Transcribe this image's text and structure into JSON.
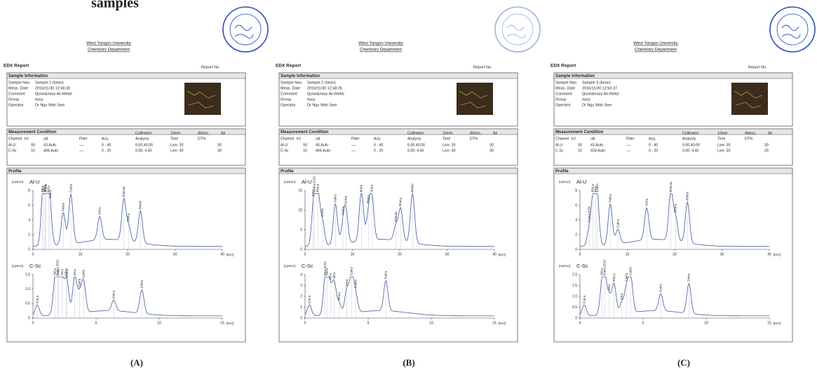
{
  "heading_fragment": "samples",
  "panels": [
    {
      "label": "(A)",
      "university": "West Yangon University",
      "department": "Chemistry Department",
      "report_title": "EDX Report",
      "report_no": "Report No.",
      "sample_info": {
        "title": "Sample Information",
        "rows": [
          [
            "Sample Nan",
            "Sample 1 (bean)"
          ],
          [
            "Meas. Date",
            "2016/11/30 12:46:30"
          ],
          [
            "Comment",
            "Quick&easy Air-Metal"
          ],
          [
            "Group",
            "easy"
          ],
          [
            "Operator",
            "Dr Ngu Wah Swe"
          ]
        ]
      },
      "measurement": {
        "title": "Measurement Condition",
        "extra": [
          "Collimator",
          "10mm",
          "Atmos.",
          "Air"
        ],
        "header": [
          "Channel",
          "kV",
          "uA",
          "Filter",
          "Acq.",
          "Analysis",
          "Time",
          "DT%"
        ],
        "rows": [
          [
            "Al-U",
            "50",
            "43-Auto",
            "----",
            "0 - 40",
            "0.00-40.00",
            "Live- 30",
            "30"
          ],
          [
            "C-Sc",
            "15",
            "466-Auto",
            "----",
            "0 - 20",
            "0.00- 4.40",
            "Live- 30",
            "30"
          ]
        ]
      },
      "profile": {
        "title": "Profile",
        "spectra": [
          {
            "unit": "[cps/uA]",
            "name": "Al-U",
            "yticks": [
              "0",
              "2",
              "4",
              "6",
              "8"
            ],
            "xticks": [
              "0",
              "10",
              "20",
              "30",
              "40"
            ],
            "xunit": "[keV]",
            "peaks": [
              {
                "label": "PKa",
                "keV": 2.0
              },
              {
                "label": "SKa",
                "keV": 2.3
              },
              {
                "label": "ClKa",
                "keV": 2.6
              },
              {
                "label": "RhLa",
                "keV": 2.7
              },
              {
                "label": "KKa",
                "keV": 3.3
              },
              {
                "label": "CaKa",
                "keV": 3.7
              },
              {
                "label": "FeKa",
                "keV": 6.4
              },
              {
                "label": "CuKa",
                "keV": 8.0
              },
              {
                "label": "SrKa",
                "keV": 14.1
              },
              {
                "label": "RhKaC",
                "keV": 19.2
              },
              {
                "label": "RhKa",
                "keV": 20.2
              },
              {
                "label": "RhKb",
                "keV": 22.7
              }
            ]
          },
          {
            "unit": "[cps/uA]",
            "name": "C-Sc",
            "yticks": [
              "0",
              "0.5",
              "1.0",
              "1.5"
            ],
            "xticks": [
              "0",
              "5",
              "10",
              "15"
            ],
            "xunit": "[keV]",
            "peaks": [
              {
                "label": "CaLa",
                "keV": 0.34
              },
              {
                "label": "SiKa",
                "keV": 1.74
              },
              {
                "label": "CaKa ESC",
                "keV": 1.95
              },
              {
                "label": "PKa",
                "keV": 2.01
              },
              {
                "label": "SKa",
                "keV": 2.31
              },
              {
                "label": "ClKa",
                "keV": 2.62
              },
              {
                "label": "RhLa",
                "keV": 2.7
              },
              {
                "label": "KKa",
                "keV": 3.31
              },
              {
                "label": "CaKa",
                "keV": 3.69
              },
              {
                "label": "CaKb",
                "keV": 4.01
              },
              {
                "label": "FeKa",
                "keV": 6.4
              },
              {
                "label": "ZnKa",
                "keV": 8.63
              }
            ]
          }
        ]
      }
    },
    {
      "label": "(B)",
      "university": "West Yangon University",
      "department": "Chemistry Department",
      "report_title": "EDX Report",
      "report_no": "Report No.",
      "sample_info": {
        "title": "Sample Information",
        "rows": [
          [
            "Sample Nan",
            "Sample 2 (bean)"
          ],
          [
            "Meas. Date",
            "2016/11/30 12:48:26"
          ],
          [
            "Comment",
            "Quick&easy Air-Metal"
          ],
          [
            "Group",
            "easy"
          ],
          [
            "Operator",
            "Dr Ngu Wah Swe"
          ]
        ]
      },
      "measurement": {
        "title": "Measurement Condition",
        "extra": [
          "Collimator",
          "10mm",
          "Atmos.",
          "Air"
        ],
        "header": [
          "Channel",
          "kV",
          "uA",
          "Filter",
          "Acq.",
          "Analysis",
          "Time",
          "DT%"
        ],
        "rows": [
          [
            "Al-U",
            "50",
            "46-Auto",
            "----",
            "0 - 40",
            "0.00-40.00",
            "Live- 30",
            "30"
          ],
          [
            "C-Sc",
            "15",
            "466-Auto",
            "----",
            "0 - 20",
            "0.00- 4.40",
            "Live- 30",
            "30"
          ]
        ]
      },
      "profile": {
        "title": "Profile",
        "spectra": [
          {
            "unit": "[cps/uA]",
            "name": "Al-U",
            "yticks": [
              "0",
              "5",
              "10",
              "15"
            ],
            "xticks": [
              "0",
              "10",
              "20",
              "30",
              "40"
            ],
            "xunit": "[keV]",
            "peaks": [
              {
                "label": "SiKa",
                "keV": 1.74
              },
              {
                "label": "CaKa ESC",
                "keV": 1.95
              },
              {
                "label": "RhLa",
                "keV": 2.7
              },
              {
                "label": "CaKa",
                "keV": 3.69
              },
              {
                "label": "FeKa",
                "keV": 6.4
              },
              {
                "label": "CuKa",
                "keV": 8.0
              },
              {
                "label": "ZnKa",
                "keV": 8.6
              },
              {
                "label": "BrKa",
                "keV": 11.9
              },
              {
                "label": "RbKa",
                "keV": 13.4
              },
              {
                "label": "SrKa",
                "keV": 14.1
              },
              {
                "label": "RhKaC",
                "keV": 19.2
              },
              {
                "label": "RhKa",
                "keV": 20.2
              },
              {
                "label": "RhKb",
                "keV": 22.7
              }
            ]
          },
          {
            "unit": "[cps/uA]",
            "name": "C-Sc",
            "yticks": [
              "0",
              "1",
              "2",
              "3",
              "4"
            ],
            "xticks": [
              "0",
              "5",
              "10",
              "15"
            ],
            "xunit": "[keV]",
            "peaks": [
              {
                "label": "CaLa",
                "keV": 0.34
              },
              {
                "label": "KKa ESC",
                "keV": 1.6
              },
              {
                "label": "SiKa",
                "keV": 1.74
              },
              {
                "label": "PKa",
                "keV": 2.01
              },
              {
                "label": "SKa",
                "keV": 2.31
              },
              {
                "label": "RhLa",
                "keV": 2.7
              },
              {
                "label": "KKa",
                "keV": 3.31
              },
              {
                "label": "CaKa",
                "keV": 3.69
              },
              {
                "label": "CaKb",
                "keV": 4.01
              },
              {
                "label": "FeKa",
                "keV": 6.4
              }
            ]
          }
        ]
      }
    },
    {
      "label": "(C)",
      "university": "West Yangon University",
      "department": "Chemistry Department",
      "report_title": "EDX Report",
      "report_no": "Report No.",
      "sample_info": {
        "title": "Sample Information",
        "rows": [
          [
            "Sample Nan",
            "Sample 3 (bean)"
          ],
          [
            "Meas. Date",
            "2016/11/30 12:50:37"
          ],
          [
            "Comment",
            "Quick&easy Air-Metal"
          ],
          [
            "Group",
            "easy"
          ],
          [
            "Operator",
            "Dr Ngu Wah Swe"
          ]
        ]
      },
      "measurement": {
        "title": "Measurement Condition",
        "extra": [
          "Collimator",
          "10mm",
          "Atmos.",
          "Air"
        ],
        "header": [
          "Channel",
          "kV",
          "uA",
          "Filter",
          "Acq.",
          "Analysis",
          "Time",
          "DT%"
        ],
        "rows": [
          [
            "Al-U",
            "50",
            "43-Auto",
            "----",
            "0 - 40",
            "0.00-40.00",
            "Live- 30",
            "30"
          ],
          [
            "C-Sc",
            "15",
            "433-Auto",
            "----",
            "0 - 20",
            "0.00- 4.40",
            "Live- 30",
            "29"
          ]
        ]
      },
      "profile": {
        "title": "Profile",
        "spectra": [
          {
            "unit": "[cps/uA]",
            "name": "Al-U",
            "yticks": [
              "0",
              "2",
              "4",
              "6",
              "8"
            ],
            "xticks": [
              "0",
              "10",
              "20",
              "30",
              "40"
            ],
            "xunit": "[keV]",
            "peaks": [
              {
                "label": "CaKa ESC",
                "keV": 1.95
              },
              {
                "label": "RhLa",
                "keV": 2.7
              },
              {
                "label": "KKa",
                "keV": 3.31
              },
              {
                "label": "CaKa",
                "keV": 3.69
              },
              {
                "label": "FeKa",
                "keV": 6.4
              },
              {
                "label": "CuKa",
                "keV": 8.0
              },
              {
                "label": "SrKa",
                "keV": 14.1
              },
              {
                "label": "RhKaC",
                "keV": 19.2
              },
              {
                "label": "RhKa",
                "keV": 20.2
              },
              {
                "label": "RhKb",
                "keV": 22.7
              }
            ]
          },
          {
            "unit": "[cps/uA]",
            "name": "C-Sc",
            "yticks": [
              "0",
              "0.5",
              "1.0",
              "1.5",
              "2.0"
            ],
            "xticks": [
              "0",
              "5",
              "10",
              "15"
            ],
            "xunit": "[keV]",
            "peaks": [
              {
                "label": "CaLa",
                "keV": 0.34
              },
              {
                "label": "SiKa",
                "keV": 1.74
              },
              {
                "label": "CaKa ESC",
                "keV": 1.95
              },
              {
                "label": "SKa",
                "keV": 2.31
              },
              {
                "label": "RhLa",
                "keV": 2.7
              },
              {
                "label": "KKa",
                "keV": 3.31
              },
              {
                "label": "CaKa",
                "keV": 3.69
              },
              {
                "label": "CaKb",
                "keV": 4.01
              },
              {
                "label": "FeKa",
                "keV": 6.4
              },
              {
                "label": "ZnKa",
                "keV": 8.63
              }
            ]
          }
        ]
      }
    }
  ]
}
